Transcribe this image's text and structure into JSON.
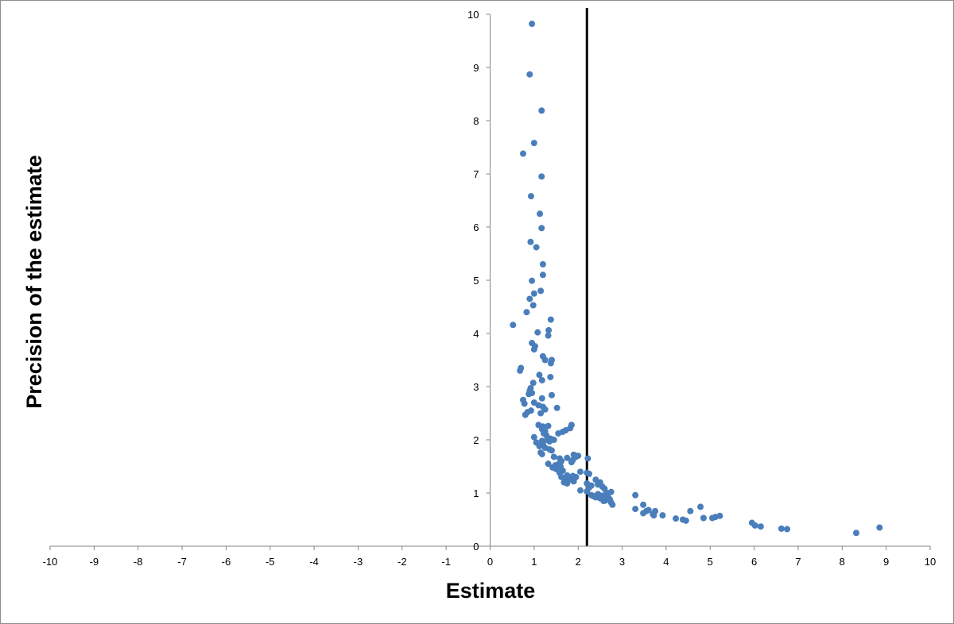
{
  "chart_data": {
    "type": "scatter",
    "title": "",
    "xlabel": "Estimate",
    "ylabel": "Precision of the estimate",
    "xlim": [
      -10,
      10
    ],
    "ylim": [
      0,
      10
    ],
    "x_ticks": [
      -10,
      -9,
      -8,
      -7,
      -6,
      -5,
      -4,
      -3,
      -2,
      -1,
      0,
      1,
      2,
      3,
      4,
      5,
      6,
      7,
      8,
      9,
      10
    ],
    "y_ticks": [
      0,
      1,
      2,
      3,
      4,
      5,
      6,
      7,
      8,
      9,
      10
    ],
    "grid": false,
    "legend": "none",
    "reference_line": {
      "x": 2.2,
      "color": "#000000"
    },
    "marker_color": "#4a7ebb",
    "series": [
      {
        "points": [
          [
            0.95,
            9.82
          ],
          [
            0.9,
            8.87
          ],
          [
            1.17,
            8.19
          ],
          [
            1.0,
            7.58
          ],
          [
            0.75,
            7.38
          ],
          [
            1.17,
            6.95
          ],
          [
            0.93,
            6.58
          ],
          [
            1.13,
            6.25
          ],
          [
            1.17,
            5.98
          ],
          [
            0.92,
            5.72
          ],
          [
            1.05,
            5.62
          ],
          [
            1.2,
            5.3
          ],
          [
            1.2,
            5.1
          ],
          [
            0.95,
            4.99
          ],
          [
            1.15,
            4.8
          ],
          [
            1.0,
            4.75
          ],
          [
            0.9,
            4.65
          ],
          [
            0.98,
            4.53
          ],
          [
            0.83,
            4.4
          ],
          [
            1.38,
            4.26
          ],
          [
            0.52,
            4.16
          ],
          [
            1.08,
            4.02
          ],
          [
            1.33,
            4.06
          ],
          [
            1.32,
            3.96
          ],
          [
            0.95,
            3.82
          ],
          [
            1.02,
            3.76
          ],
          [
            1.0,
            3.7
          ],
          [
            1.2,
            3.57
          ],
          [
            1.4,
            3.5
          ],
          [
            1.25,
            3.5
          ],
          [
            1.38,
            3.44
          ],
          [
            0.7,
            3.35
          ],
          [
            0.68,
            3.3
          ],
          [
            1.12,
            3.22
          ],
          [
            1.37,
            3.18
          ],
          [
            1.18,
            3.12
          ],
          [
            0.98,
            3.07
          ],
          [
            0.92,
            2.97
          ],
          [
            0.9,
            2.92
          ],
          [
            0.95,
            2.88
          ],
          [
            0.88,
            2.86
          ],
          [
            1.4,
            2.84
          ],
          [
            1.18,
            2.78
          ],
          [
            0.75,
            2.75
          ],
          [
            1.0,
            2.7
          ],
          [
            0.78,
            2.68
          ],
          [
            1.1,
            2.65
          ],
          [
            1.2,
            2.62
          ],
          [
            1.52,
            2.6
          ],
          [
            1.25,
            2.57
          ],
          [
            0.93,
            2.55
          ],
          [
            0.85,
            2.52
          ],
          [
            1.15,
            2.5
          ],
          [
            0.8,
            2.47
          ],
          [
            1.85,
            2.28
          ],
          [
            1.32,
            2.26
          ],
          [
            1.2,
            2.25
          ],
          [
            1.1,
            2.28
          ],
          [
            1.82,
            2.22
          ],
          [
            1.18,
            2.2
          ],
          [
            1.72,
            2.18
          ],
          [
            1.25,
            2.16
          ],
          [
            1.22,
            2.12
          ],
          [
            1.65,
            2.15
          ],
          [
            1.55,
            2.12
          ],
          [
            1.28,
            2.08
          ],
          [
            1.0,
            2.05
          ],
          [
            1.38,
            2.02
          ],
          [
            1.3,
            2.0
          ],
          [
            1.45,
            2.0
          ],
          [
            1.18,
            1.98
          ],
          [
            1.35,
            1.97
          ],
          [
            1.05,
            1.95
          ],
          [
            1.2,
            1.92
          ],
          [
            1.12,
            1.88
          ],
          [
            1.25,
            1.85
          ],
          [
            1.35,
            1.82
          ],
          [
            1.4,
            1.8
          ],
          [
            1.15,
            1.76
          ],
          [
            1.18,
            1.73
          ],
          [
            1.9,
            1.72
          ],
          [
            2.0,
            1.7
          ],
          [
            1.95,
            1.68
          ],
          [
            1.45,
            1.68
          ],
          [
            1.75,
            1.66
          ],
          [
            2.22,
            1.65
          ],
          [
            1.58,
            1.65
          ],
          [
            1.88,
            1.62
          ],
          [
            1.62,
            1.6
          ],
          [
            1.85,
            1.58
          ],
          [
            1.32,
            1.55
          ],
          [
            1.55,
            1.54
          ],
          [
            1.48,
            1.52
          ],
          [
            1.6,
            1.5
          ],
          [
            1.42,
            1.48
          ],
          [
            1.5,
            1.45
          ],
          [
            1.65,
            1.42
          ],
          [
            2.05,
            1.4
          ],
          [
            1.58,
            1.38
          ],
          [
            2.2,
            1.38
          ],
          [
            2.25,
            1.36
          ],
          [
            1.75,
            1.33
          ],
          [
            1.88,
            1.32
          ],
          [
            1.62,
            1.3
          ],
          [
            1.95,
            1.3
          ],
          [
            1.85,
            1.28
          ],
          [
            1.8,
            1.25
          ],
          [
            1.72,
            1.25
          ],
          [
            2.4,
            1.25
          ],
          [
            1.9,
            1.22
          ],
          [
            1.68,
            1.2
          ],
          [
            1.75,
            1.18
          ],
          [
            2.5,
            1.2
          ],
          [
            2.2,
            1.18
          ],
          [
            2.45,
            1.16
          ],
          [
            2.3,
            1.14
          ],
          [
            2.55,
            1.12
          ],
          [
            2.25,
            1.1
          ],
          [
            2.6,
            1.08
          ],
          [
            2.05,
            1.05
          ],
          [
            2.2,
            1.03
          ],
          [
            2.75,
            1.02
          ],
          [
            2.65,
            1.0
          ],
          [
            2.45,
            0.98
          ],
          [
            2.3,
            0.96
          ],
          [
            2.55,
            0.95
          ],
          [
            2.35,
            0.94
          ],
          [
            2.4,
            0.92
          ],
          [
            2.5,
            0.9
          ],
          [
            2.68,
            0.92
          ],
          [
            2.72,
            0.88
          ],
          [
            2.62,
            0.86
          ],
          [
            2.58,
            0.85
          ],
          [
            2.75,
            0.82
          ],
          [
            2.78,
            0.78
          ],
          [
            3.3,
            0.96
          ],
          [
            3.48,
            0.78
          ],
          [
            3.3,
            0.7
          ],
          [
            3.6,
            0.68
          ],
          [
            3.55,
            0.66
          ],
          [
            3.48,
            0.62
          ],
          [
            3.75,
            0.66
          ],
          [
            3.7,
            0.6
          ],
          [
            3.72,
            0.58
          ],
          [
            3.92,
            0.58
          ],
          [
            4.78,
            0.74
          ],
          [
            4.55,
            0.66
          ],
          [
            4.22,
            0.52
          ],
          [
            4.38,
            0.5
          ],
          [
            4.45,
            0.48
          ],
          [
            4.85,
            0.53
          ],
          [
            5.05,
            0.53
          ],
          [
            5.12,
            0.55
          ],
          [
            5.22,
            0.57
          ],
          [
            5.95,
            0.44
          ],
          [
            6.02,
            0.39
          ],
          [
            6.15,
            0.37
          ],
          [
            6.62,
            0.33
          ],
          [
            6.75,
            0.32
          ],
          [
            8.32,
            0.25
          ],
          [
            8.85,
            0.35
          ]
        ]
      }
    ]
  }
}
